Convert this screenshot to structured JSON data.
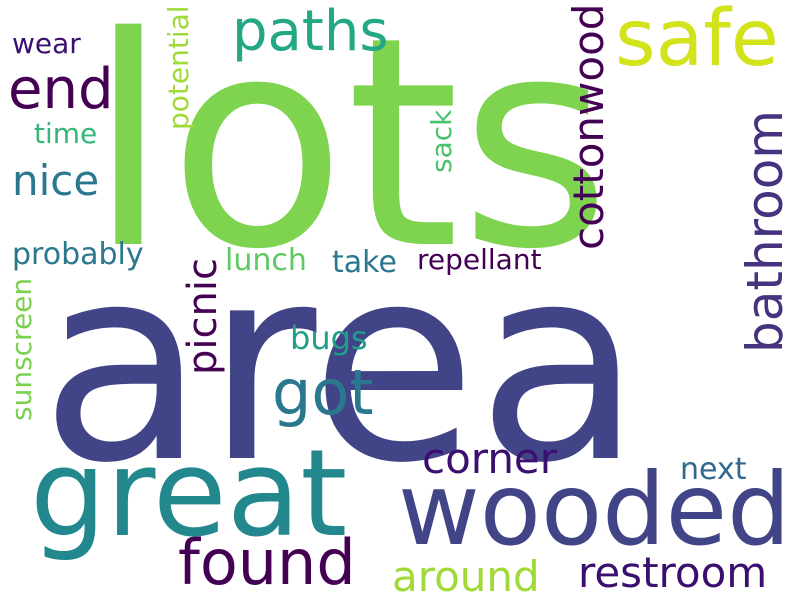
{
  "words": [
    {
      "id": "lots",
      "text": "lots",
      "color": "#7ed34f"
    },
    {
      "id": "area",
      "text": "area",
      "color": "#414487"
    },
    {
      "id": "great",
      "text": "great",
      "color": "#23888e"
    },
    {
      "id": "wooded",
      "text": "wooded",
      "color": "#414487"
    },
    {
      "id": "safe",
      "text": "safe",
      "color": "#d2e21b"
    },
    {
      "id": "paths",
      "text": "paths",
      "color": "#22a884"
    },
    {
      "id": "end",
      "text": "end",
      "color": "#440154"
    },
    {
      "id": "nice",
      "text": "nice",
      "color": "#2a788e"
    },
    {
      "id": "wear",
      "text": "wear",
      "color": "#3b0f70"
    },
    {
      "id": "time",
      "text": "time",
      "color": "#35b779"
    },
    {
      "id": "potential",
      "text": "potential",
      "color": "#a0da39"
    },
    {
      "id": "sack",
      "text": "sack",
      "color": "#4ac16d"
    },
    {
      "id": "cottonwood",
      "text": "cottonwood",
      "color": "#440154"
    },
    {
      "id": "bathroom",
      "text": "bathroom",
      "color": "#46327e"
    },
    {
      "id": "probably",
      "text": "probably",
      "color": "#2a788e"
    },
    {
      "id": "lunch",
      "text": "lunch",
      "color": "#5ec962"
    },
    {
      "id": "take",
      "text": "take",
      "color": "#2a788e"
    },
    {
      "id": "repellant",
      "text": "repellant",
      "color": "#440154"
    },
    {
      "id": "picnic",
      "text": "picnic",
      "color": "#440154"
    },
    {
      "id": "got",
      "text": "got",
      "color": "#2a788e"
    },
    {
      "id": "bugs",
      "text": "bugs",
      "color": "#1f9e89"
    },
    {
      "id": "sunscreen",
      "text": "sunscreen",
      "color": "#7ad151"
    },
    {
      "id": "corner",
      "text": "corner",
      "color": "#3b0f70"
    },
    {
      "id": "next",
      "text": "next",
      "color": "#31688e"
    },
    {
      "id": "found",
      "text": "found",
      "color": "#440154"
    },
    {
      "id": "around",
      "text": "around",
      "color": "#a0da39"
    },
    {
      "id": "restroom",
      "text": "restroom",
      "color": "#3b0f70"
    }
  ]
}
